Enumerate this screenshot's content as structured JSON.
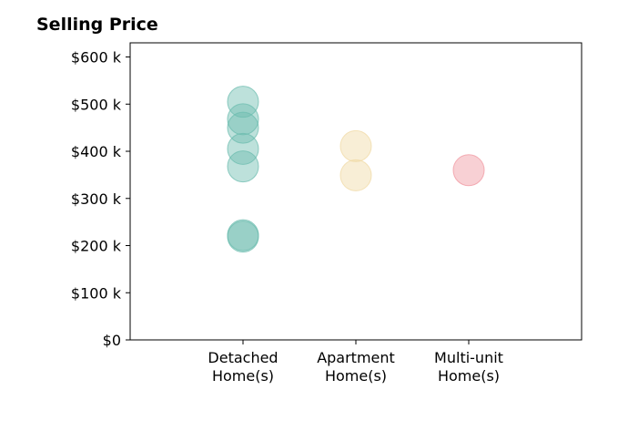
{
  "chart_data": {
    "type": "scatter",
    "title": "Selling Price",
    "xlabel": "",
    "ylabel": "",
    "ylim": [
      0,
      630000
    ],
    "y_ticks": [
      {
        "value": 0,
        "label": "$0"
      },
      {
        "value": 100000,
        "label": "$100 k"
      },
      {
        "value": 200000,
        "label": "$200 k"
      },
      {
        "value": 300000,
        "label": "$300 k"
      },
      {
        "value": 400000,
        "label": "$400 k"
      },
      {
        "value": 500000,
        "label": "$500 k"
      },
      {
        "value": 600000,
        "label": "$600 k"
      }
    ],
    "categories": [
      {
        "label": [
          "Detached",
          "Home(s)"
        ],
        "color": "#6cbcaf"
      },
      {
        "label": [
          "Apartment",
          "Home(s)"
        ],
        "color": "#f0d9a4"
      },
      {
        "label": [
          "Multi-unit",
          "Home(s)"
        ],
        "color": "#f0969f"
      }
    ],
    "points": [
      {
        "category": 0,
        "value": 505000
      },
      {
        "category": 0,
        "value": 468000
      },
      {
        "category": 0,
        "value": 450000
      },
      {
        "category": 0,
        "value": 405000
      },
      {
        "category": 0,
        "value": 368000
      },
      {
        "category": 0,
        "value": 222000
      },
      {
        "category": 0,
        "value": 219000
      },
      {
        "category": 1,
        "value": 411000
      },
      {
        "category": 1,
        "value": 349000
      },
      {
        "category": 2,
        "value": 360000
      }
    ],
    "grid": false,
    "legend": "none"
  }
}
